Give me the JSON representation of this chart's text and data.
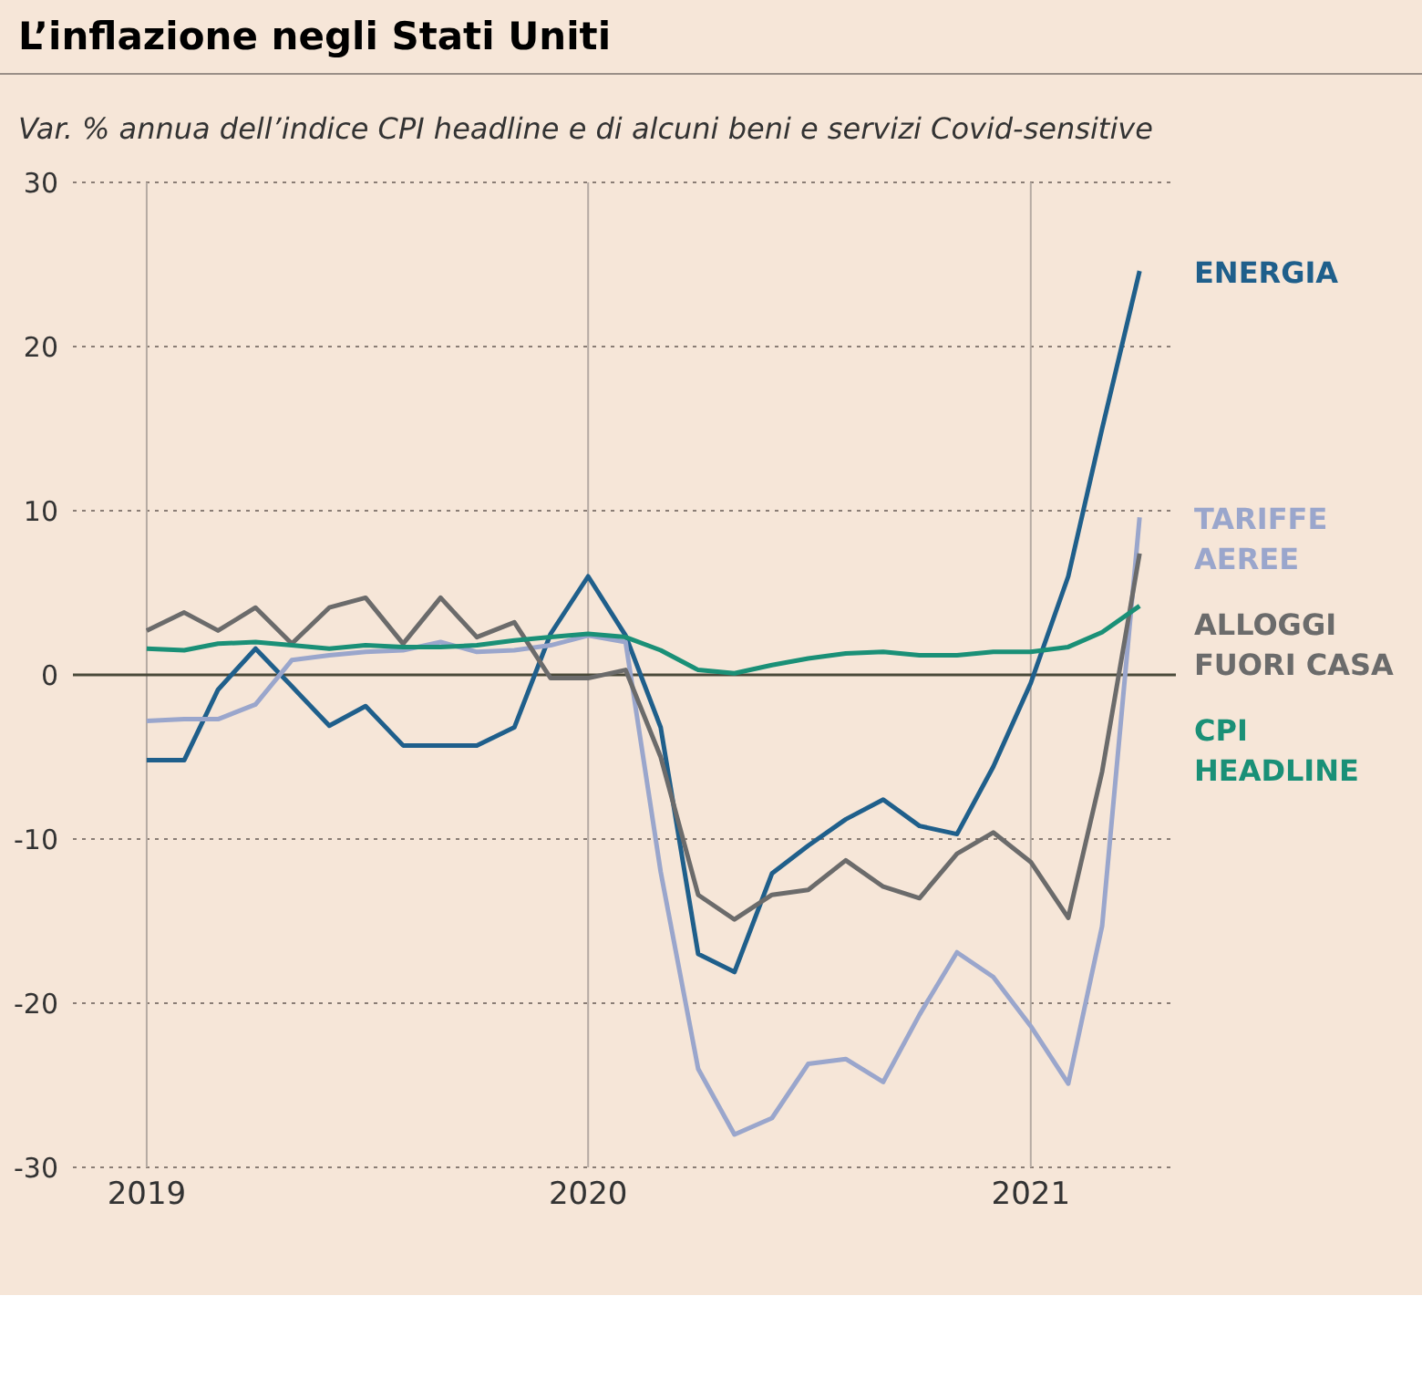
{
  "chart_data": {
    "type": "line",
    "title": "L’inflazione negli Stati Uniti",
    "subtitle": "Var. % annua dell’indice CPI headline e di alcuni beni e servizi Covid-sensitive",
    "x": [
      "2019-01",
      "2019-02",
      "2019-03",
      "2019-04",
      "2019-05",
      "2019-06",
      "2019-07",
      "2019-08",
      "2019-09",
      "2019-10",
      "2019-11",
      "2019-12",
      "2020-01",
      "2020-02",
      "2020-03",
      "2020-04",
      "2020-05",
      "2020-06",
      "2020-07",
      "2020-08",
      "2020-09",
      "2020-10",
      "2020-11",
      "2020-12",
      "2021-01",
      "2021-02",
      "2021-03",
      "2021-04"
    ],
    "series": [
      {
        "name": "ENERGIA",
        "color": "#1f5f8b",
        "values": [
          -5.2,
          -5.2,
          -0.9,
          1.6,
          -0.7,
          -3.1,
          -1.9,
          -4.3,
          -4.3,
          -4.3,
          -3.2,
          2.5,
          6.0,
          2.4,
          -3.2,
          -17.0,
          -18.1,
          -12.1,
          -10.4,
          -8.8,
          -7.6,
          -9.2,
          -9.7,
          -5.6,
          -0.5,
          6.0,
          15.0,
          24.6
        ]
      },
      {
        "name": "TARIFFE AEREE",
        "color": "#9aa6cc",
        "values": [
          -2.8,
          -2.7,
          -2.7,
          -1.8,
          0.9,
          1.2,
          1.4,
          1.5,
          2.0,
          1.4,
          1.5,
          1.8,
          2.4,
          2.0,
          -12.0,
          -24.0,
          -28.0,
          -27.0,
          -23.7,
          -23.4,
          -24.8,
          -20.7,
          -16.9,
          -18.4,
          -21.4,
          -24.9,
          -15.3,
          9.6
        ]
      },
      {
        "name": "ALLOGGI FUORI CASA",
        "color": "#6b6b6b",
        "values": [
          2.7,
          3.8,
          2.7,
          4.1,
          1.9,
          4.1,
          4.7,
          1.9,
          4.7,
          2.3,
          3.2,
          -0.2,
          -0.2,
          0.3,
          -5.0,
          -13.4,
          -14.9,
          -13.4,
          -13.1,
          -11.3,
          -12.9,
          -13.6,
          -10.9,
          -9.6,
          -11.4,
          -14.8,
          -5.9,
          7.4
        ]
      },
      {
        "name": "CPI HEADLINE",
        "color": "#1a9077",
        "values": [
          1.6,
          1.5,
          1.9,
          2.0,
          1.8,
          1.6,
          1.8,
          1.7,
          1.7,
          1.8,
          2.1,
          2.3,
          2.5,
          2.3,
          1.5,
          0.3,
          0.1,
          0.6,
          1.0,
          1.3,
          1.4,
          1.2,
          1.2,
          1.4,
          1.4,
          1.7,
          2.6,
          4.2
        ]
      }
    ],
    "xlim": [
      "2018-11",
      "2021-05"
    ],
    "xticks": [
      "2019",
      "2020",
      "2021"
    ],
    "ylim": [
      -30,
      30
    ],
    "yticks": [
      -30,
      -20,
      -10,
      0,
      10,
      20,
      30
    ],
    "ref_lines": [
      {
        "axis": "y",
        "value": 0,
        "color": "#4a4a3a"
      }
    ],
    "grid": true,
    "marker": "none",
    "line_style": "solid"
  }
}
